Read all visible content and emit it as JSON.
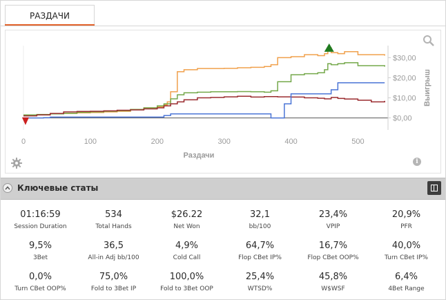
{
  "tabs": [
    {
      "label": "РАЗДАЧИ"
    }
  ],
  "chart_data": {
    "type": "line",
    "xlabel": "Раздачи",
    "ylabel": "Выигрыш",
    "x_ticks": [
      "0",
      "100",
      "200",
      "300",
      "400",
      "500"
    ],
    "y_ticks": [
      "$0,00",
      "$10,00",
      "$20,00",
      "$30,00"
    ],
    "xlim": [
      0,
      545
    ],
    "ylim": [
      -6,
      36
    ],
    "grid": false,
    "series": [
      {
        "color": "#f0a04b",
        "x": [
          0,
          20,
          40,
          60,
          80,
          100,
          120,
          140,
          160,
          180,
          200,
          210,
          215,
          220,
          230,
          240,
          260,
          280,
          300,
          320,
          340,
          360,
          370,
          380,
          400,
          420,
          440,
          450,
          455,
          460,
          470,
          480,
          500,
          520,
          540
        ],
        "y": [
          1.5,
          1.6,
          2.0,
          2.2,
          2.5,
          2.7,
          3.0,
          3.3,
          4.2,
          5.0,
          5.5,
          6.5,
          8.0,
          13.0,
          23.0,
          24.0,
          24.6,
          24.6,
          24.7,
          25.0,
          25.2,
          25.6,
          26.5,
          30.0,
          30.5,
          31.5,
          31.0,
          32.0,
          35.0,
          32.5,
          32.0,
          33.0,
          31.5,
          31.5,
          31.0
        ]
      },
      {
        "color": "#74a84a",
        "x": [
          0,
          20,
          40,
          60,
          80,
          100,
          120,
          140,
          160,
          180,
          200,
          210,
          220,
          230,
          240,
          260,
          280,
          300,
          320,
          340,
          360,
          370,
          380,
          400,
          420,
          440,
          450,
          455,
          460,
          470,
          480,
          500,
          520,
          540
        ],
        "y": [
          1.5,
          1.7,
          2.0,
          2.3,
          2.8,
          3.0,
          3.3,
          3.6,
          4.2,
          5.0,
          6.0,
          7.0,
          9.5,
          11.5,
          12.5,
          12.8,
          13.0,
          13.0,
          13.1,
          13.0,
          12.8,
          13.5,
          18.0,
          21.5,
          22.0,
          22.5,
          24.0,
          27.0,
          26.5,
          27.0,
          27.5,
          26.0,
          26.0,
          25.5
        ]
      },
      {
        "color": "#9a2a2e",
        "x": [
          0,
          20,
          40,
          60,
          80,
          100,
          120,
          140,
          160,
          180,
          200,
          210,
          220,
          230,
          240,
          260,
          280,
          300,
          320,
          340,
          360,
          380,
          400,
          420,
          440,
          450,
          460,
          470,
          480,
          500,
          520,
          540
        ],
        "y": [
          1.0,
          1.5,
          2.2,
          3.0,
          3.2,
          3.3,
          3.5,
          3.8,
          4.0,
          4.5,
          5.0,
          6.0,
          7.0,
          8.0,
          9.0,
          10.0,
          10.2,
          10.5,
          10.8,
          10.4,
          10.6,
          10.5,
          10.4,
          10.0,
          9.8,
          9.5,
          10.2,
          9.7,
          9.4,
          8.8,
          8.0,
          8.5
        ]
      },
      {
        "color": "#4a74d6",
        "x": [
          0,
          30,
          40,
          80,
          120,
          160,
          200,
          210,
          220,
          260,
          300,
          340,
          360,
          370,
          380,
          390,
          400,
          430,
          440,
          450,
          460,
          470,
          480,
          500,
          520,
          540
        ],
        "y": [
          0.0,
          0.1,
          0.4,
          0.4,
          0.4,
          0.4,
          0.4,
          1.2,
          2.0,
          2.0,
          2.0,
          2.0,
          2.0,
          0.0,
          0.0,
          7.0,
          12.0,
          12.0,
          12.0,
          12.0,
          14.0,
          17.5,
          17.5,
          17.5,
          17.5,
          17.5
        ]
      }
    ],
    "markers": [
      {
        "kind": "min",
        "color": "#cc1f1f",
        "x": 3,
        "y": -1.5
      },
      {
        "kind": "max",
        "color": "#1f7a1f",
        "x": 457,
        "y": 35
      }
    ]
  },
  "section": {
    "title": "Ключевые статы"
  },
  "stats": [
    {
      "value": "01:16:59",
      "label": "Session Duration"
    },
    {
      "value": "534",
      "label": "Total Hands"
    },
    {
      "value": "$26.22",
      "label": "Net Won"
    },
    {
      "value": "32,1",
      "label": "bb/100"
    },
    {
      "value": "23,4%",
      "label": "VPIP"
    },
    {
      "value": "20,9%",
      "label": "PFR"
    },
    {
      "value": "9,5%",
      "label": "3Bet"
    },
    {
      "value": "36,5",
      "label": "All-in Adj bb/100"
    },
    {
      "value": "4,9%",
      "label": "Cold Call"
    },
    {
      "value": "64,7%",
      "label": "Flop CBet IP%"
    },
    {
      "value": "16,7%",
      "label": "Flop CBet OOP%"
    },
    {
      "value": "40,0%",
      "label": "Turn CBet IP%"
    },
    {
      "value": "0,0%",
      "label": "Turn CBet OOP%"
    },
    {
      "value": "75,0%",
      "label": "Fold to 3Bet IP"
    },
    {
      "value": "100,0%",
      "label": "Fold to 3Bet OOP"
    },
    {
      "value": "25,4%",
      "label": "WTSD%"
    },
    {
      "value": "45,8%",
      "label": "W$WSF"
    },
    {
      "value": "6,4%",
      "label": "4Bet Range"
    }
  ]
}
